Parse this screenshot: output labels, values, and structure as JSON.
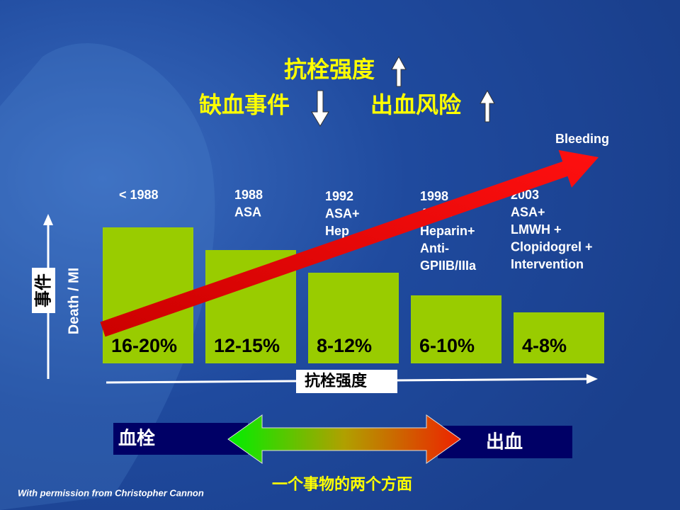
{
  "title": {
    "line1": "抗栓强度",
    "ischemia": "缺血事件",
    "bleeding_risk": "出血风险"
  },
  "bleeding_label": "Bleeding",
  "y_axis": {
    "cn": "事件",
    "en": "Death / MI"
  },
  "x_axis": "抗栓强度",
  "bars": [
    {
      "era": [
        "< 1988"
      ],
      "rate": "16-20%"
    },
    {
      "era": [
        "1988",
        "ASA"
      ],
      "rate": "12-15%"
    },
    {
      "era": [
        "1992",
        "ASA+",
        "Hep"
      ],
      "rate": "8-12%"
    },
    {
      "era": [
        "1998",
        "ASA+",
        "Heparin+",
        "Anti-",
        "GPIIB/IIIa"
      ],
      "rate": "6-10%"
    },
    {
      "era": [
        "2003",
        "ASA+",
        "LMWH +",
        "Clopidogrel +",
        "Intervention"
      ],
      "rate": "4-8%"
    }
  ],
  "bottom": {
    "left": "血栓",
    "right": "出血",
    "caption": "一个事物的两个方面"
  },
  "credit": "With permission from Christopher Cannon"
}
